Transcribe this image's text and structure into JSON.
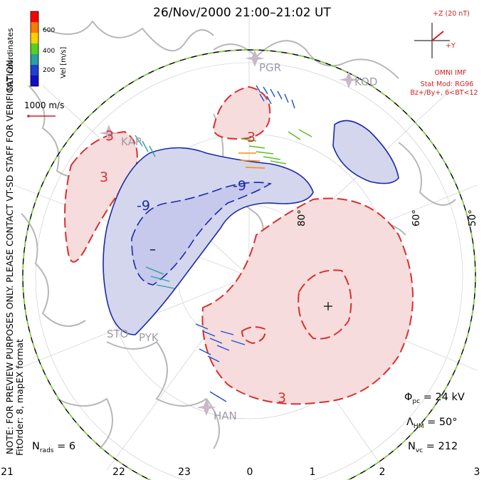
{
  "title": "26/Nov/2000 21:00–21:02 UT",
  "side_note_1": "NOTE: FOR PREVIEW PURPOSES ONLY. PLEASE CONTACT VT-SD STAFF FOR VERIFICATION.",
  "side_note_2": "FitOrder: 8,  mapEX format",
  "coords_label": "MLT coordinates",
  "colorbar": {
    "title": "Vel [m/s]",
    "ticks": [
      "600",
      "400",
      "200"
    ],
    "colors": [
      "#ff0000",
      "#ff7a00",
      "#ffd000",
      "#58d020",
      "#2aa0a0",
      "#2040d0",
      "#1010c0"
    ]
  },
  "scale_vector_label": "1000 m/s",
  "imf": {
    "z_label": "+Z (20 nT)",
    "y_label": "+Y",
    "source": "OMNI IMF",
    "model": "Stat Mod: RG96",
    "condition": "Bz+/By+, 6<BT<12"
  },
  "stats": {
    "phi_pc_label": "Φ",
    "phi_pc_sub": "pc",
    "phi_pc_value": "= 24 kV",
    "lambda_label": "Λ",
    "lambda_sub": "HM",
    "lambda_value": "= 50°",
    "nvc_label": "N",
    "nvc_sub": "vc",
    "nvc_value": "= 212",
    "nrads_label": "N",
    "nrads_sub": "rads",
    "nrads_value": "= 6"
  },
  "mlt_labels": [
    "21",
    "22",
    "23",
    "0",
    "1",
    "2",
    "3"
  ],
  "lat_labels": [
    "80°",
    "60°",
    "50°"
  ],
  "stations": [
    "PGR",
    "KOD",
    "KAP",
    "STO",
    "PYK",
    "HAN"
  ],
  "contour_labels": [
    "-9",
    "-9",
    "3",
    "3",
    "3",
    "3"
  ],
  "extrema_marks": [
    "–",
    "+"
  ],
  "colors": {
    "positive_fill": "#f6dcdc",
    "positive_line": "#d83030",
    "negative_fill": "#d4d6ee",
    "negative_line": "#1a2aa8",
    "hm_boundary": "#80d040",
    "land": "#b8b8b8"
  }
}
